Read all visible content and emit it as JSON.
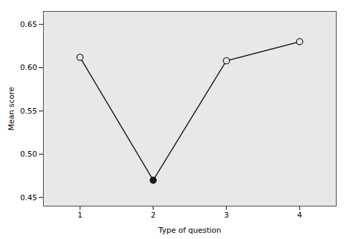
{
  "chart_data": {
    "type": "line",
    "x": [
      1,
      2,
      3,
      4
    ],
    "values": [
      0.612,
      0.47,
      0.608,
      0.63
    ],
    "x_label": "Type of question",
    "y_label": "Mean score",
    "xlim": [
      0.5,
      4.5
    ],
    "ylim": [
      0.44,
      0.665
    ],
    "xticks": [
      1,
      2,
      3,
      4
    ],
    "yticks": [
      0.45,
      {
        "value": 0.5,
        "label": "0.50"
      },
      0.55,
      {
        "value": 0.6,
        "label": "0.60"
      },
      0.65
    ],
    "color": "#1a1a1a",
    "colors": [
      "#e8e8e8",
      "#1a1a1a",
      "#e8e8e8",
      "#e8e8e8"
    ],
    "marker": "circle",
    "grid": false
  }
}
